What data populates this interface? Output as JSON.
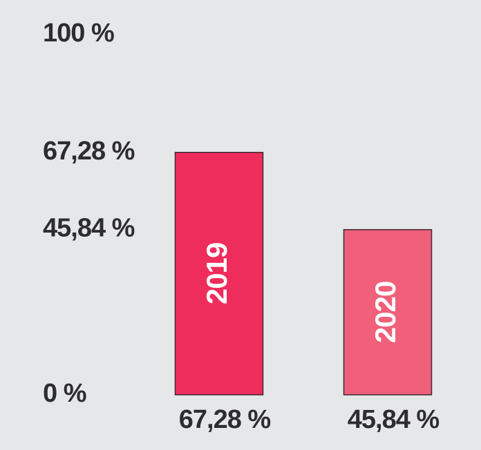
{
  "chart_data": {
    "type": "bar",
    "categories": [
      "2019",
      "2020"
    ],
    "values": [
      67.28,
      45.84
    ],
    "value_labels": [
      "67,28 %",
      "45,84 %"
    ],
    "colors": [
      "#ee2d5c",
      "#f0607a"
    ],
    "ylim": [
      0,
      100
    ],
    "yticks": [
      {
        "value": 0,
        "label": "0 %"
      },
      {
        "value": 45.84,
        "label": "45,84 %"
      },
      {
        "value": 67.28,
        "label": "67,28 %"
      },
      {
        "value": 100,
        "label": "100 %"
      }
    ]
  }
}
